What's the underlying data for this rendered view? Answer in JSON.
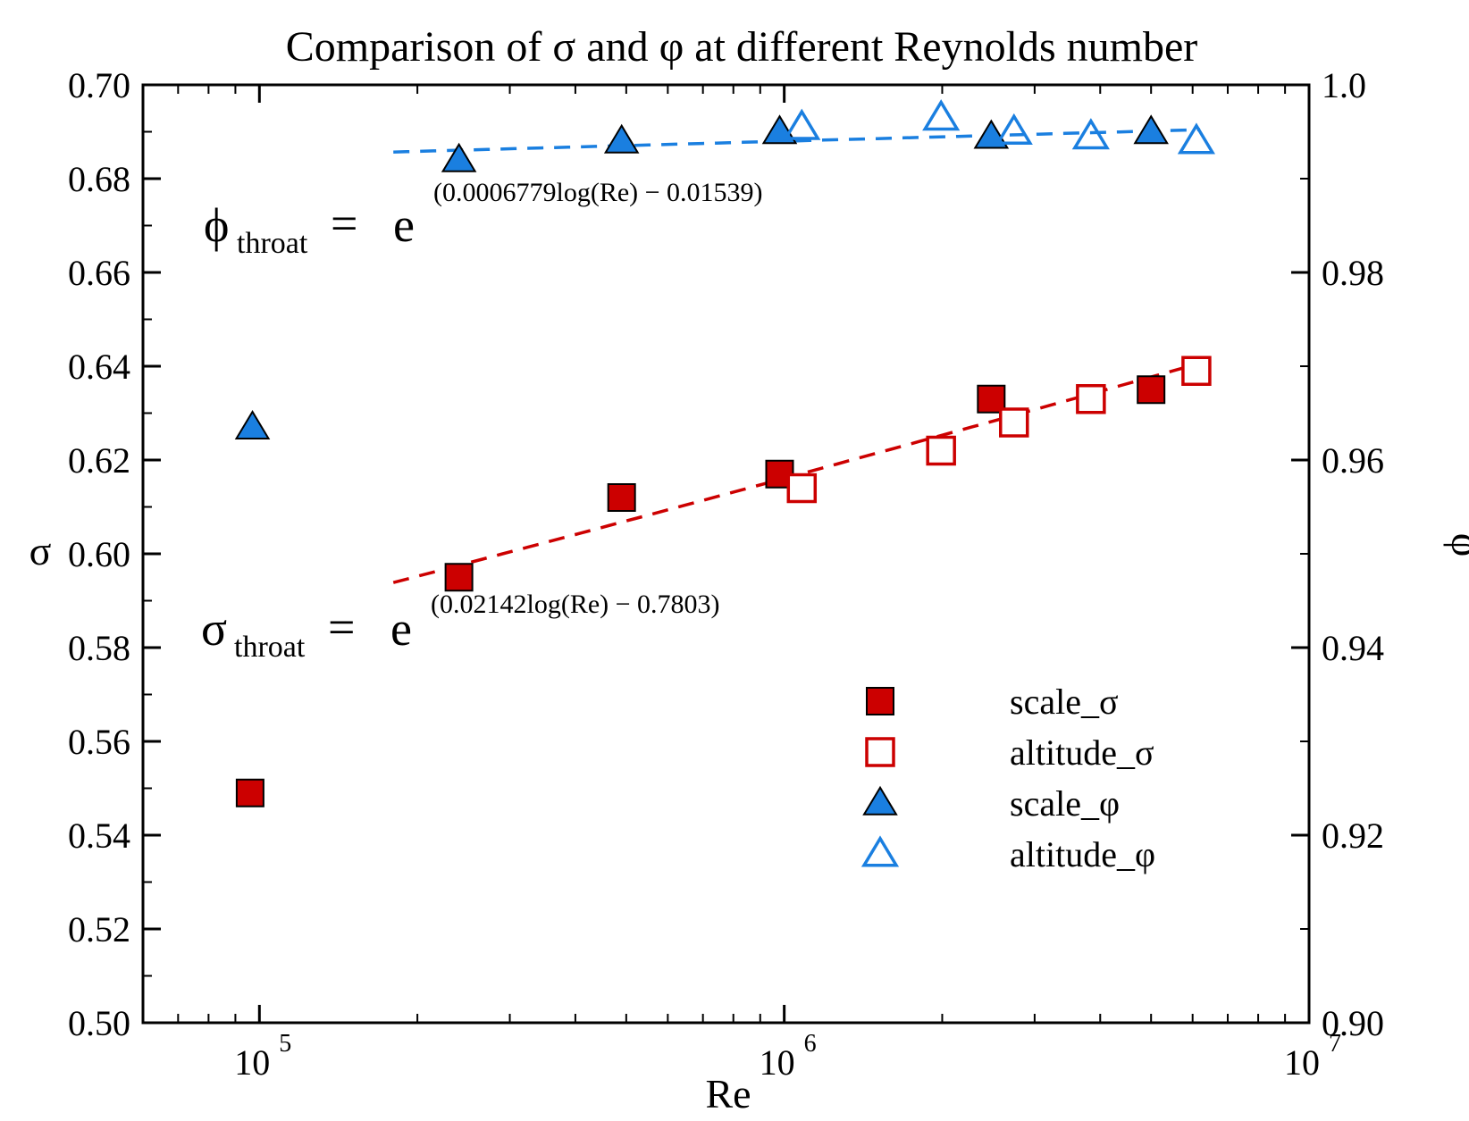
{
  "chart_data": {
    "type": "scatter",
    "title": "Comparison of σ and φ at different Reynolds number",
    "xlabel": "Re",
    "ylabel": "σ",
    "y2label": "φ",
    "xscale": "log",
    "xlim": [
      60000,
      10000000
    ],
    "ylim": [
      0.5,
      0.7
    ],
    "y2lim": [
      0.9,
      1.0
    ],
    "x_ticks": [
      {
        "value": 100000,
        "base": "10",
        "exp": "5"
      },
      {
        "value": 1000000,
        "base": "10",
        "exp": "6"
      },
      {
        "value": 10000000,
        "base": "10",
        "exp": "7"
      }
    ],
    "y_ticks": [
      {
        "value": 0.5,
        "label": "0.50"
      },
      {
        "value": 0.52,
        "label": "0.52"
      },
      {
        "value": 0.54,
        "label": "0.54"
      },
      {
        "value": 0.56,
        "label": "0.56"
      },
      {
        "value": 0.58,
        "label": "0.58"
      },
      {
        "value": 0.6,
        "label": "0.60"
      },
      {
        "value": 0.62,
        "label": "0.62"
      },
      {
        "value": 0.64,
        "label": "0.64"
      },
      {
        "value": 0.66,
        "label": "0.66"
      },
      {
        "value": 0.68,
        "label": "0.68"
      },
      {
        "value": 0.7,
        "label": "0.70"
      }
    ],
    "y2_ticks": [
      {
        "value": 0.9,
        "label": "0.90"
      },
      {
        "value": 0.92,
        "label": "0.92"
      },
      {
        "value": 0.94,
        "label": "0.94"
      },
      {
        "value": 0.96,
        "label": "0.96"
      },
      {
        "value": 0.98,
        "label": "0.98"
      },
      {
        "value": 1.0,
        "label": "1.0"
      }
    ],
    "series": [
      {
        "name": "scale_σ",
        "axis": "left",
        "marker": "square",
        "filled": true,
        "color": "#cc0000",
        "points": [
          [
            96000,
            0.549
          ],
          [
            240000,
            0.595
          ],
          [
            490000,
            0.612
          ],
          [
            980000,
            0.617
          ],
          [
            2480000,
            0.633
          ],
          [
            5000000,
            0.635
          ]
        ]
      },
      {
        "name": "altitude_σ",
        "axis": "left",
        "marker": "square",
        "filled": false,
        "color": "#cc0000",
        "points": [
          [
            1080000,
            0.614
          ],
          [
            1990000,
            0.622
          ],
          [
            2740000,
            0.628
          ],
          [
            3840000,
            0.633
          ],
          [
            6100000,
            0.639
          ]
        ]
      },
      {
        "name": "scale_φ",
        "axis": "right",
        "marker": "triangle",
        "filled": true,
        "color": "#1a7fe0",
        "points": [
          [
            97000,
            0.9635
          ],
          [
            240000,
            0.992
          ],
          [
            490000,
            0.994
          ],
          [
            980000,
            0.995
          ],
          [
            2480000,
            0.9945
          ],
          [
            5000000,
            0.995
          ]
        ]
      },
      {
        "name": "altitude_φ",
        "axis": "right",
        "marker": "triangle",
        "filled": false,
        "color": "#1a7fe0",
        "points": [
          [
            1080000,
            0.9955
          ],
          [
            1990000,
            0.9965
          ],
          [
            2740000,
            0.995
          ],
          [
            3840000,
            0.9945
          ],
          [
            6100000,
            0.994
          ]
        ]
      }
    ],
    "fits": [
      {
        "name": "φ_throat fit",
        "axis": "right",
        "color": "#1a7fe0",
        "a": 0.0006779,
        "b": -0.01539,
        "x_range": [
          180000,
          6200000
        ]
      },
      {
        "name": "σ_throat fit",
        "axis": "left",
        "color": "#cc0000",
        "a": 0.02142,
        "b": -0.7803,
        "x_range": [
          180000,
          6200000
        ]
      }
    ],
    "annotations": {
      "phi_eq": {
        "lhs": "ϕ",
        "sub": "throat",
        "eq": "=",
        "base": "e",
        "exp": "(0.0006779log(Re) − 0.01539)"
      },
      "sigma_eq": {
        "lhs": "σ",
        "sub": "throat",
        "eq": "=",
        "base": "e",
        "exp": "(0.02142log(Re) − 0.7803)"
      }
    },
    "legend_position": "lower-right",
    "grid": false
  }
}
